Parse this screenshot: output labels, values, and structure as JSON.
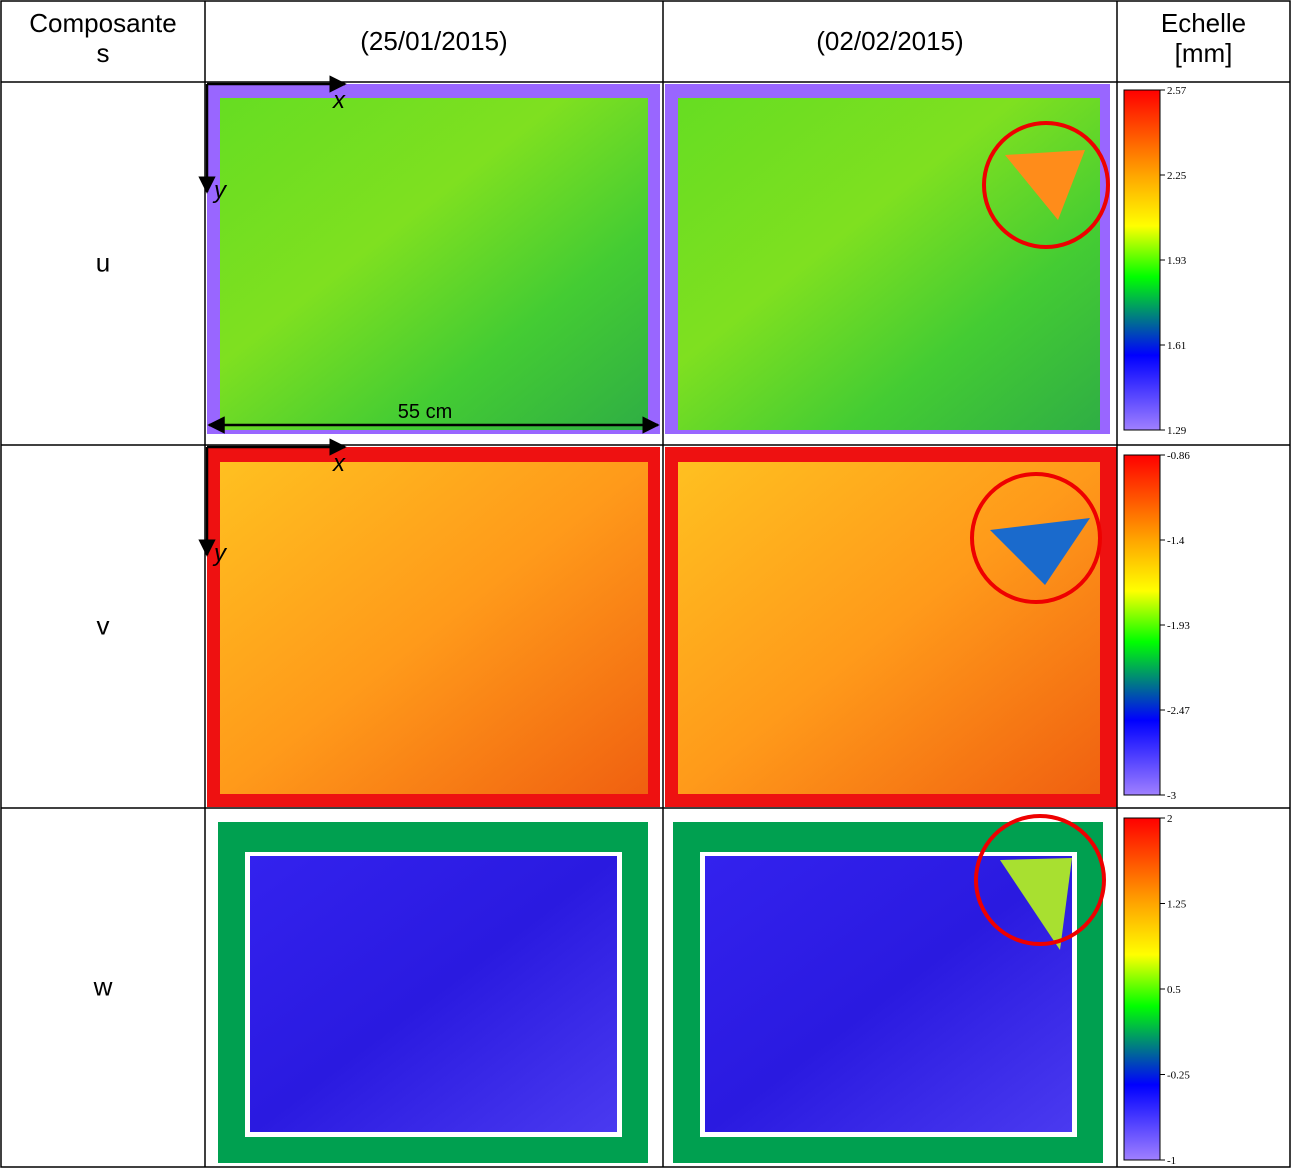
{
  "header": {
    "columns": [
      "Composantes",
      "(25/01/2015)",
      "(02/02/2015)",
      "Echelle [mm]"
    ]
  },
  "rows": [
    {
      "label": "u",
      "scale": [
        "2.57",
        "2.25",
        "1.93",
        "1.61",
        "1.29"
      ]
    },
    {
      "label": "v",
      "scale": [
        "-0.86",
        "-1.4",
        "-1.93",
        "-2.47",
        "-3"
      ]
    },
    {
      "label": "w",
      "scale": [
        "2",
        "1.25",
        "0.5",
        "-0.25",
        "-1"
      ]
    }
  ],
  "annotations": {
    "x": "x",
    "y": "y",
    "width": "55 cm"
  }
}
